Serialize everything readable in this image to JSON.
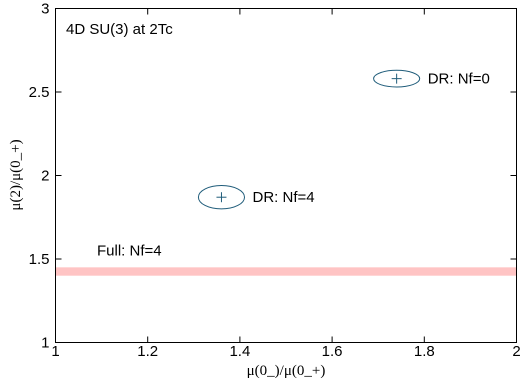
{
  "chart_data": {
    "type": "scatter",
    "title": "",
    "annotation_title": "4D SU(3) at 2Tc",
    "xlabel": "μ(0_)/μ(0_+)",
    "ylabel": "μ(2)/μ(0_+)",
    "xlim": [
      1,
      2
    ],
    "ylim": [
      1,
      3
    ],
    "xticks": [
      1,
      1.2,
      1.4,
      1.6,
      1.8,
      2
    ],
    "xtick_labels": [
      "1",
      "1.2",
      "1.4",
      "1.6",
      "1.8",
      "2"
    ],
    "yticks": [
      1,
      1.5,
      2,
      2.5,
      3
    ],
    "ytick_labels": [
      "1",
      "1.5",
      "2",
      "2.5",
      "3"
    ],
    "grid": false,
    "colors": {
      "band": "#ffc4c4",
      "ellipse": "#1f5c7a",
      "marker": "#1f5c7a",
      "frame": "#000000"
    },
    "points": [
      {
        "label": "DR: Nf=0",
        "x": 1.74,
        "y": 2.58,
        "x_err": 0.05,
        "y_err": 0.05
      },
      {
        "label": "DR: Nf=4",
        "x": 1.36,
        "y": 1.87,
        "x_err": 0.05,
        "y_err": 0.07
      }
    ],
    "band": {
      "label": "Full: Nf=4",
      "y_low": 1.4,
      "y_high": 1.45
    }
  }
}
